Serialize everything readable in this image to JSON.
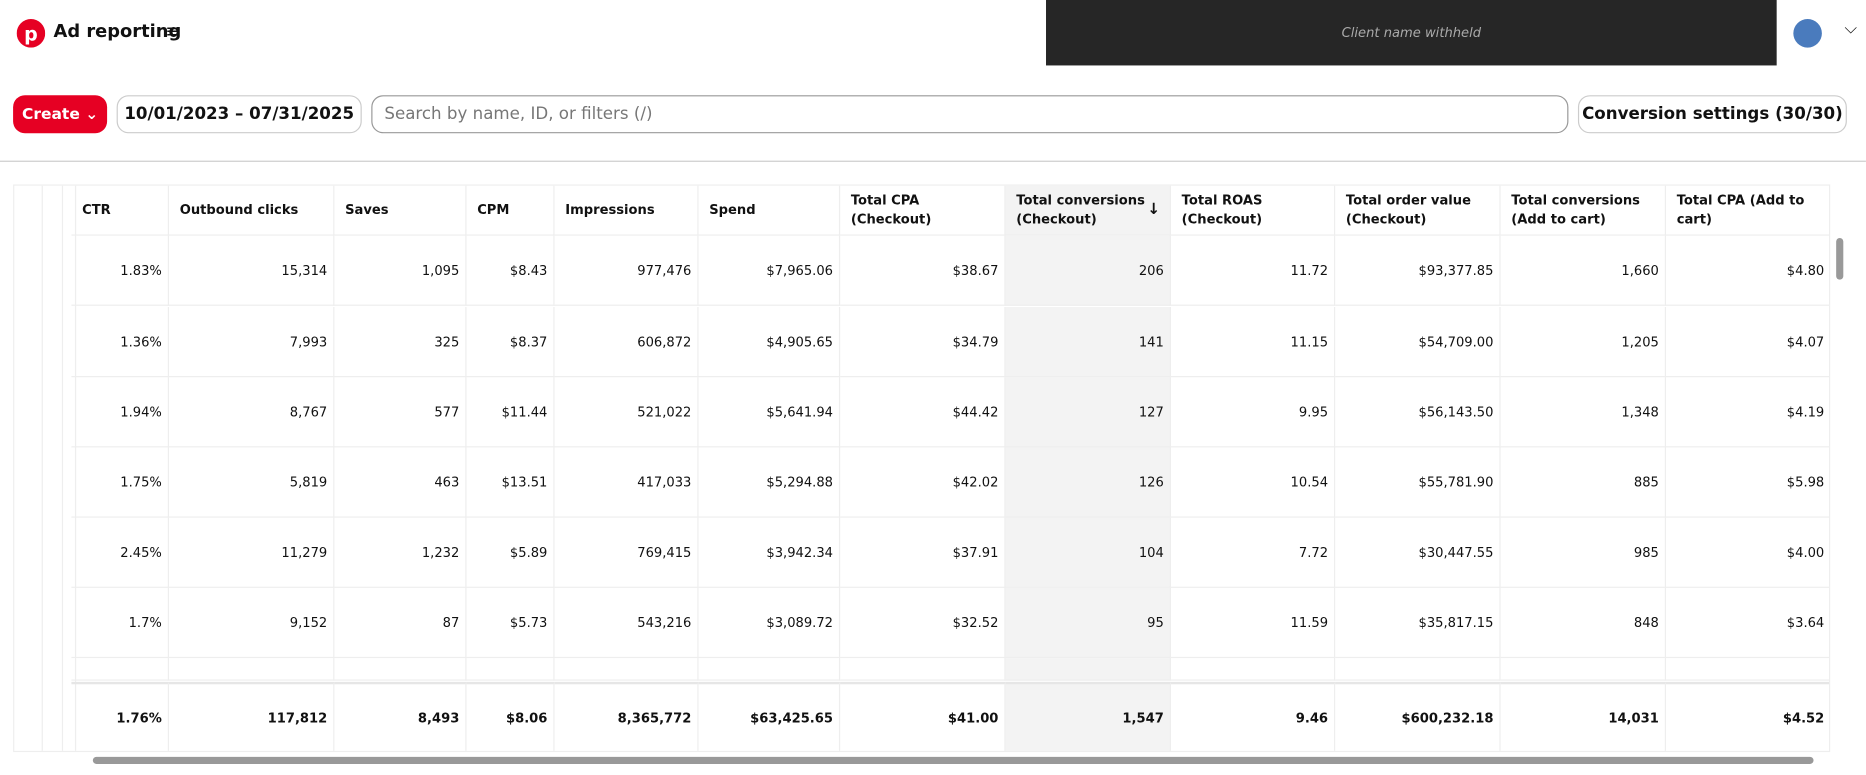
{
  "header": {
    "title": "Ad reporting",
    "client": "Client name withheld"
  },
  "toolbar": {
    "create": "Create",
    "date_range": "10/01/2023 – 07/31/2025",
    "search_placeholder": "Search by name, ID, or filters (/)",
    "conversion_settings": "Conversion settings (30/30)"
  },
  "table": {
    "columns": [
      "CTR",
      "Outbound clicks",
      "Saves",
      "CPM",
      "Impressions",
      "Spend",
      "Total CPA (Checkout)",
      "Total conversions (Checkout)",
      "Total ROAS (Checkout)",
      "Total order value (Checkout)",
      "Total conversions (Add to cart)",
      "Total CPA (Add to cart)"
    ],
    "rows": [
      [
        "1.83%",
        "15,314",
        "1,095",
        "$8.43",
        "977,476",
        "$7,965.06",
        "$38.67",
        "206",
        "11.72",
        "$93,377.85",
        "1,660",
        "$4.80"
      ],
      [
        "1.36%",
        "7,993",
        "325",
        "$8.37",
        "606,872",
        "$4,905.65",
        "$34.79",
        "141",
        "11.15",
        "$54,709.00",
        "1,205",
        "$4.07"
      ],
      [
        "1.94%",
        "8,767",
        "577",
        "$11.44",
        "521,022",
        "$5,641.94",
        "$44.42",
        "127",
        "9.95",
        "$56,143.50",
        "1,348",
        "$4.19"
      ],
      [
        "1.75%",
        "5,819",
        "463",
        "$13.51",
        "417,033",
        "$5,294.88",
        "$42.02",
        "126",
        "10.54",
        "$55,781.90",
        "885",
        "$5.98"
      ],
      [
        "2.45%",
        "11,279",
        "1,232",
        "$5.89",
        "769,415",
        "$3,942.34",
        "$37.91",
        "104",
        "7.72",
        "$30,447.55",
        "985",
        "$4.00"
      ],
      [
        "1.7%",
        "9,152",
        "87",
        "$5.73",
        "543,216",
        "$3,089.72",
        "$32.52",
        "95",
        "11.59",
        "$35,817.15",
        "848",
        "$3.64"
      ]
    ],
    "totals": [
      "1.76%",
      "117,812",
      "8,493",
      "$8.06",
      "8,365,772",
      "$63,425.65",
      "$41.00",
      "1,547",
      "9.46",
      "$600,232.18",
      "14,031",
      "$4.52"
    ]
  }
}
